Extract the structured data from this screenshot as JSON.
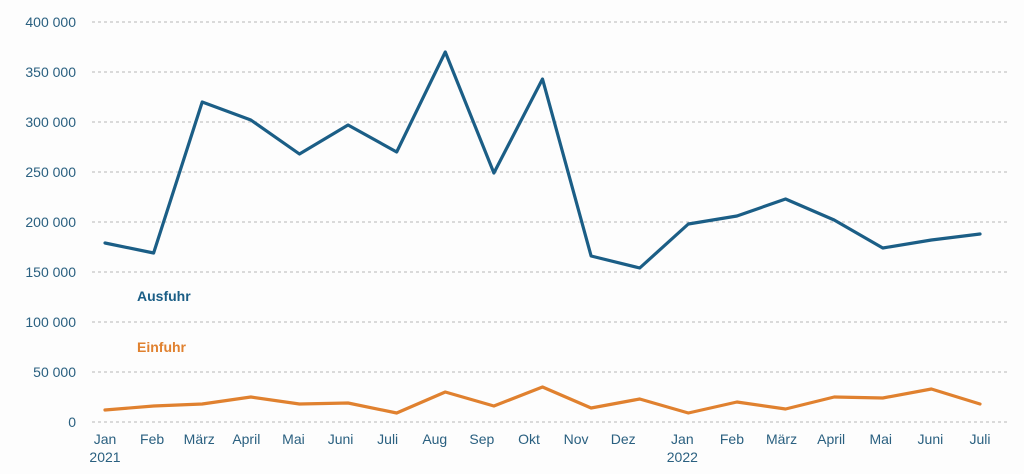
{
  "chart_data": {
    "type": "line",
    "title": "",
    "xlabel": "",
    "ylabel": "",
    "ylim": [
      0,
      400000
    ],
    "yticks": [
      0,
      50000,
      100000,
      150000,
      200000,
      250000,
      300000,
      350000,
      400000
    ],
    "ytick_labels": [
      "0",
      "50 000",
      "100 000",
      "150 000",
      "200 000",
      "250 000",
      "300 000",
      "350 000",
      "400 000"
    ],
    "grid": "horizontal dotted",
    "categories": [
      "Jan",
      "Feb",
      "März",
      "April",
      "Mai",
      "Juni",
      "Juli",
      "Aug",
      "Sep",
      "Okt",
      "Nov",
      "Dez",
      "Jan",
      "Feb",
      "März",
      "April",
      "Mai",
      "Juni",
      "Juli"
    ],
    "year_labels": {
      "0": "2021",
      "12": "2022"
    },
    "series": [
      {
        "name": "Ausfuhr",
        "color": "#1b5e86",
        "values": [
          179000,
          169000,
          320000,
          302000,
          268000,
          297000,
          270000,
          370000,
          249000,
          343000,
          166000,
          154000,
          198000,
          206000,
          223000,
          202000,
          174000,
          182000,
          188000
        ]
      },
      {
        "name": "Einfuhr",
        "color": "#e0812f",
        "values": [
          12000,
          16000,
          18000,
          25000,
          18000,
          19000,
          9000,
          30000,
          16000,
          35000,
          14000,
          23000,
          9000,
          20000,
          13000,
          25000,
          24000,
          33000,
          18000
        ]
      }
    ]
  }
}
